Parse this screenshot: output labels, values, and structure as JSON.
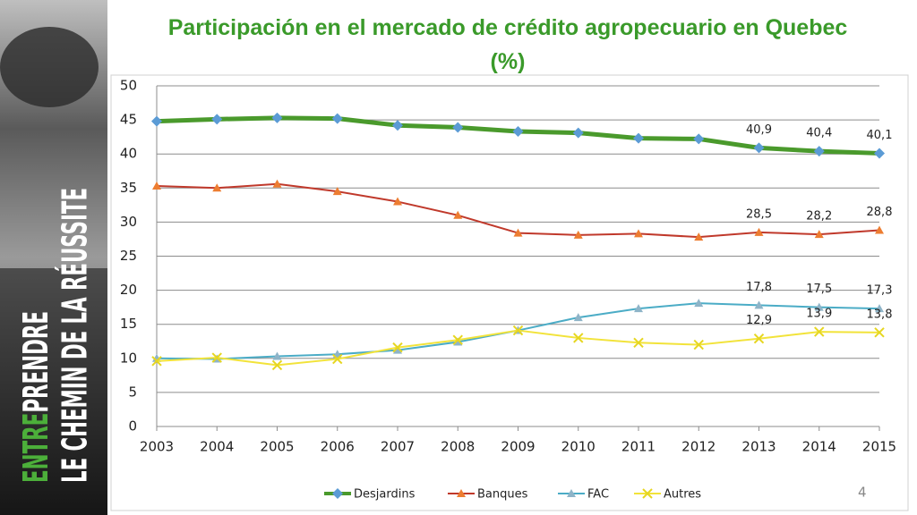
{
  "chart_data": {
    "type": "line",
    "title": "Participación en el mercado de crédito agropecuario en Quebec (%)",
    "categories": [
      "2003",
      "2004",
      "2005",
      "2006",
      "2007",
      "2008",
      "2009",
      "2010",
      "2011",
      "2012",
      "2013",
      "2014",
      "2015"
    ],
    "series": [
      {
        "name": "Desjardins",
        "color": "#4a9a2c",
        "marker": "diamond",
        "marker_color": "#5b9bd5",
        "line_width": 5,
        "values": [
          44.8,
          45.1,
          45.3,
          45.2,
          44.2,
          43.9,
          43.3,
          43.1,
          42.3,
          42.2,
          40.9,
          40.4,
          40.1
        ],
        "value_labels": [
          null,
          null,
          null,
          null,
          null,
          null,
          null,
          null,
          null,
          null,
          "40,9",
          "40,4",
          "40,1"
        ]
      },
      {
        "name": "Banques",
        "color": "#c0392b",
        "marker": "triangle",
        "marker_color": "#ed7d31",
        "line_width": 2,
        "values": [
          35.3,
          35.0,
          35.6,
          34.5,
          33.0,
          31.0,
          28.4,
          28.1,
          28.3,
          27.8,
          28.5,
          28.2,
          28.8
        ],
        "value_labels": [
          null,
          null,
          null,
          null,
          null,
          null,
          null,
          null,
          null,
          null,
          "28,5",
          "28,2",
          "28,8"
        ]
      },
      {
        "name": "FAC",
        "color": "#4bacc6",
        "marker": "triangle",
        "marker_color": "#8eb4c8",
        "line_width": 2,
        "values": [
          10.0,
          9.9,
          10.3,
          10.6,
          11.2,
          12.4,
          14.1,
          16.0,
          17.3,
          18.1,
          17.8,
          17.5,
          17.3
        ],
        "value_labels": [
          null,
          null,
          null,
          null,
          null,
          null,
          null,
          null,
          null,
          null,
          "17,8",
          "17,5",
          "17,3"
        ]
      },
      {
        "name": "Autres",
        "color": "#f2e33a",
        "marker": "x",
        "marker_color": "#e6d620",
        "line_width": 2,
        "values": [
          9.6,
          10.1,
          9.0,
          9.9,
          11.6,
          12.7,
          14.1,
          13.0,
          12.3,
          12.0,
          12.9,
          13.9,
          13.8
        ],
        "value_labels": [
          null,
          null,
          null,
          null,
          null,
          null,
          null,
          null,
          null,
          null,
          "12,9",
          "13,9",
          "13,8"
        ]
      }
    ],
    "ylim": [
      0,
      50
    ],
    "yticks": [
      0,
      5,
      10,
      15,
      20,
      25,
      30,
      35,
      40,
      45,
      50
    ],
    "grid": true,
    "legend": "bottom"
  },
  "sidebar": {
    "line1": [
      "ENTRE",
      "PRENDRE"
    ],
    "line2": "LE CHEMIN DE LA RÉUSSITE"
  },
  "page_number": "4"
}
